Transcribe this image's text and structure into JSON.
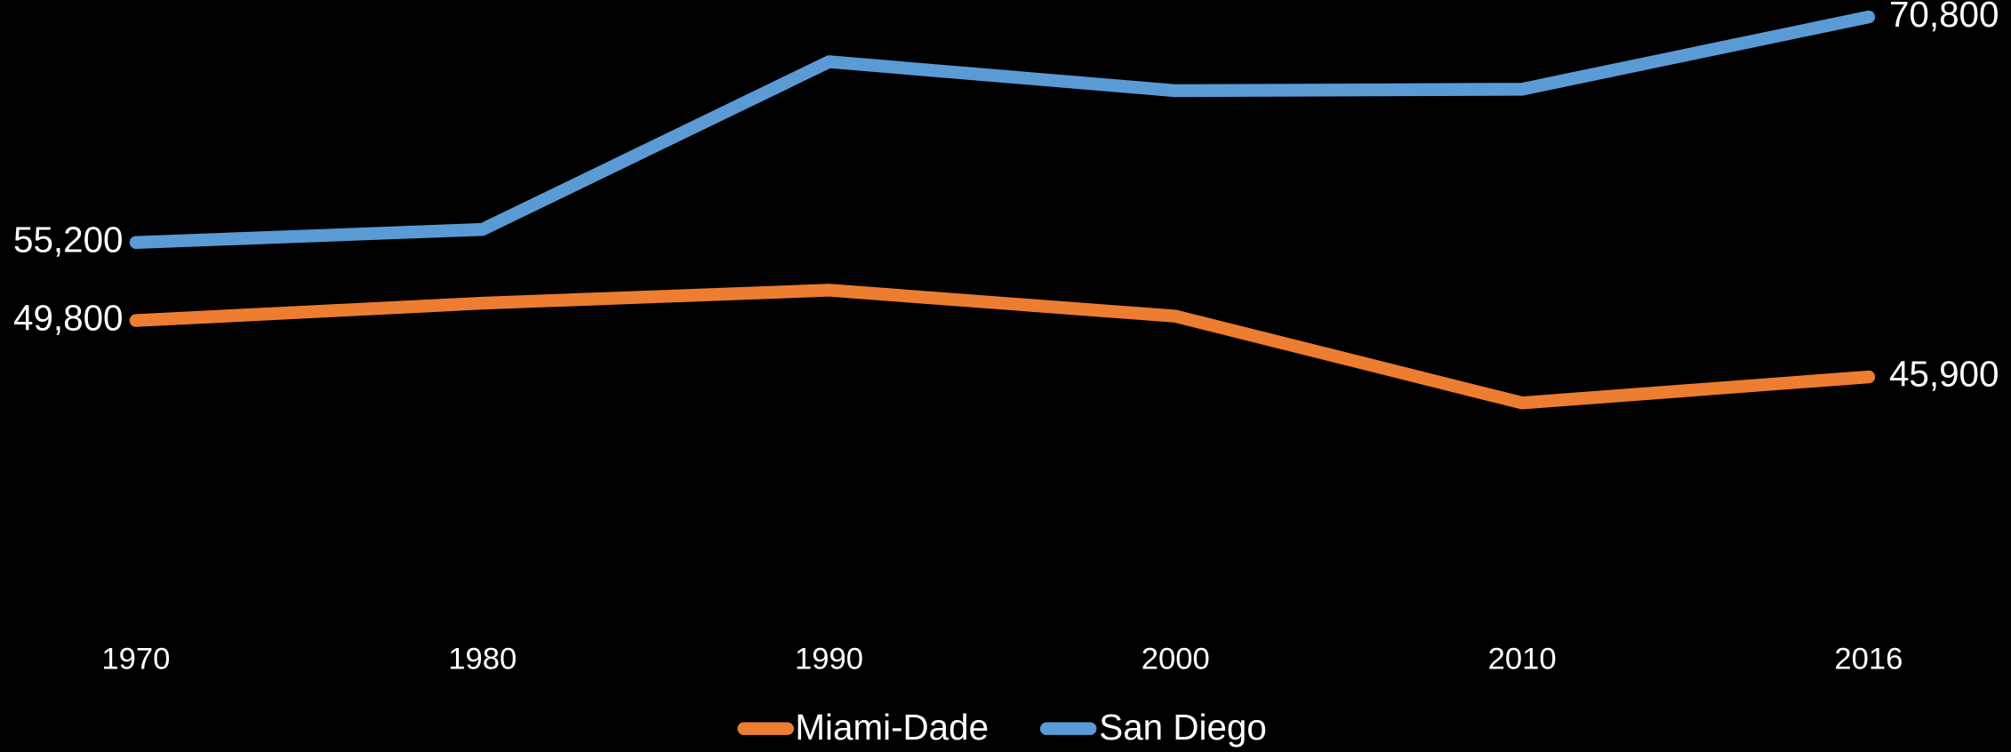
{
  "chart_data": {
    "type": "line",
    "categories": [
      "1970",
      "1980",
      "1990",
      "2000",
      "2010",
      "2016"
    ],
    "series": [
      {
        "name": "Miami-Dade",
        "color": "#ed7d31",
        "values": [
          49800,
          51000,
          51900,
          50100,
          44100,
          45900
        ],
        "value_labels": [
          "49,800",
          null,
          null,
          null,
          null,
          "45,900"
        ]
      },
      {
        "name": "San Diego",
        "color": "#5b9bd5",
        "values": [
          55200,
          56100,
          67700,
          65700,
          65800,
          70800
        ],
        "value_labels": [
          "55,200",
          null,
          null,
          null,
          null,
          "70,800"
        ]
      }
    ],
    "legend": "bottom"
  }
}
